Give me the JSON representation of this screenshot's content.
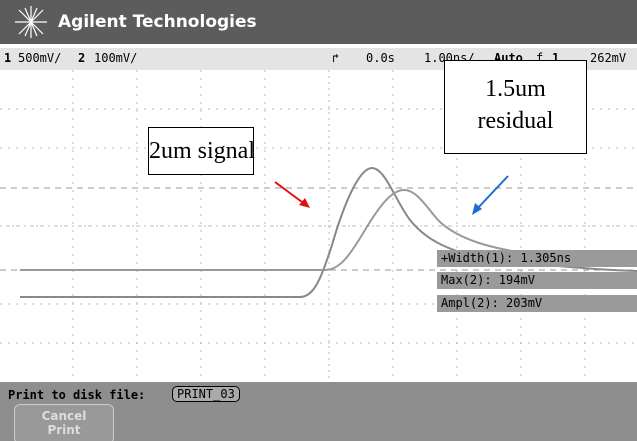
{
  "header": {
    "brand": "Agilent Technologies"
  },
  "status": {
    "ch1": "1",
    "ch1_scale": "500mV/",
    "ch2": "2",
    "ch2_scale": "100mV/",
    "delay": "0.0s",
    "timebase": "1.00ns/",
    "trigger_mode": "Auto",
    "trigger_channel": "1",
    "trigger_level": "262mV"
  },
  "annotations": {
    "signal": "2um signal",
    "residual": [
      "1.5um",
      "residual"
    ]
  },
  "measurements": [
    "+Width(1): 1.305ns",
    "Max(2): 194mV",
    "Ampl(2): 203mV"
  ],
  "markers": [
    "2",
    "1"
  ],
  "footer": {
    "prompt": "Print to disk file:",
    "filename": "PRINT_03",
    "button": [
      "Cancel",
      "Print"
    ]
  }
}
